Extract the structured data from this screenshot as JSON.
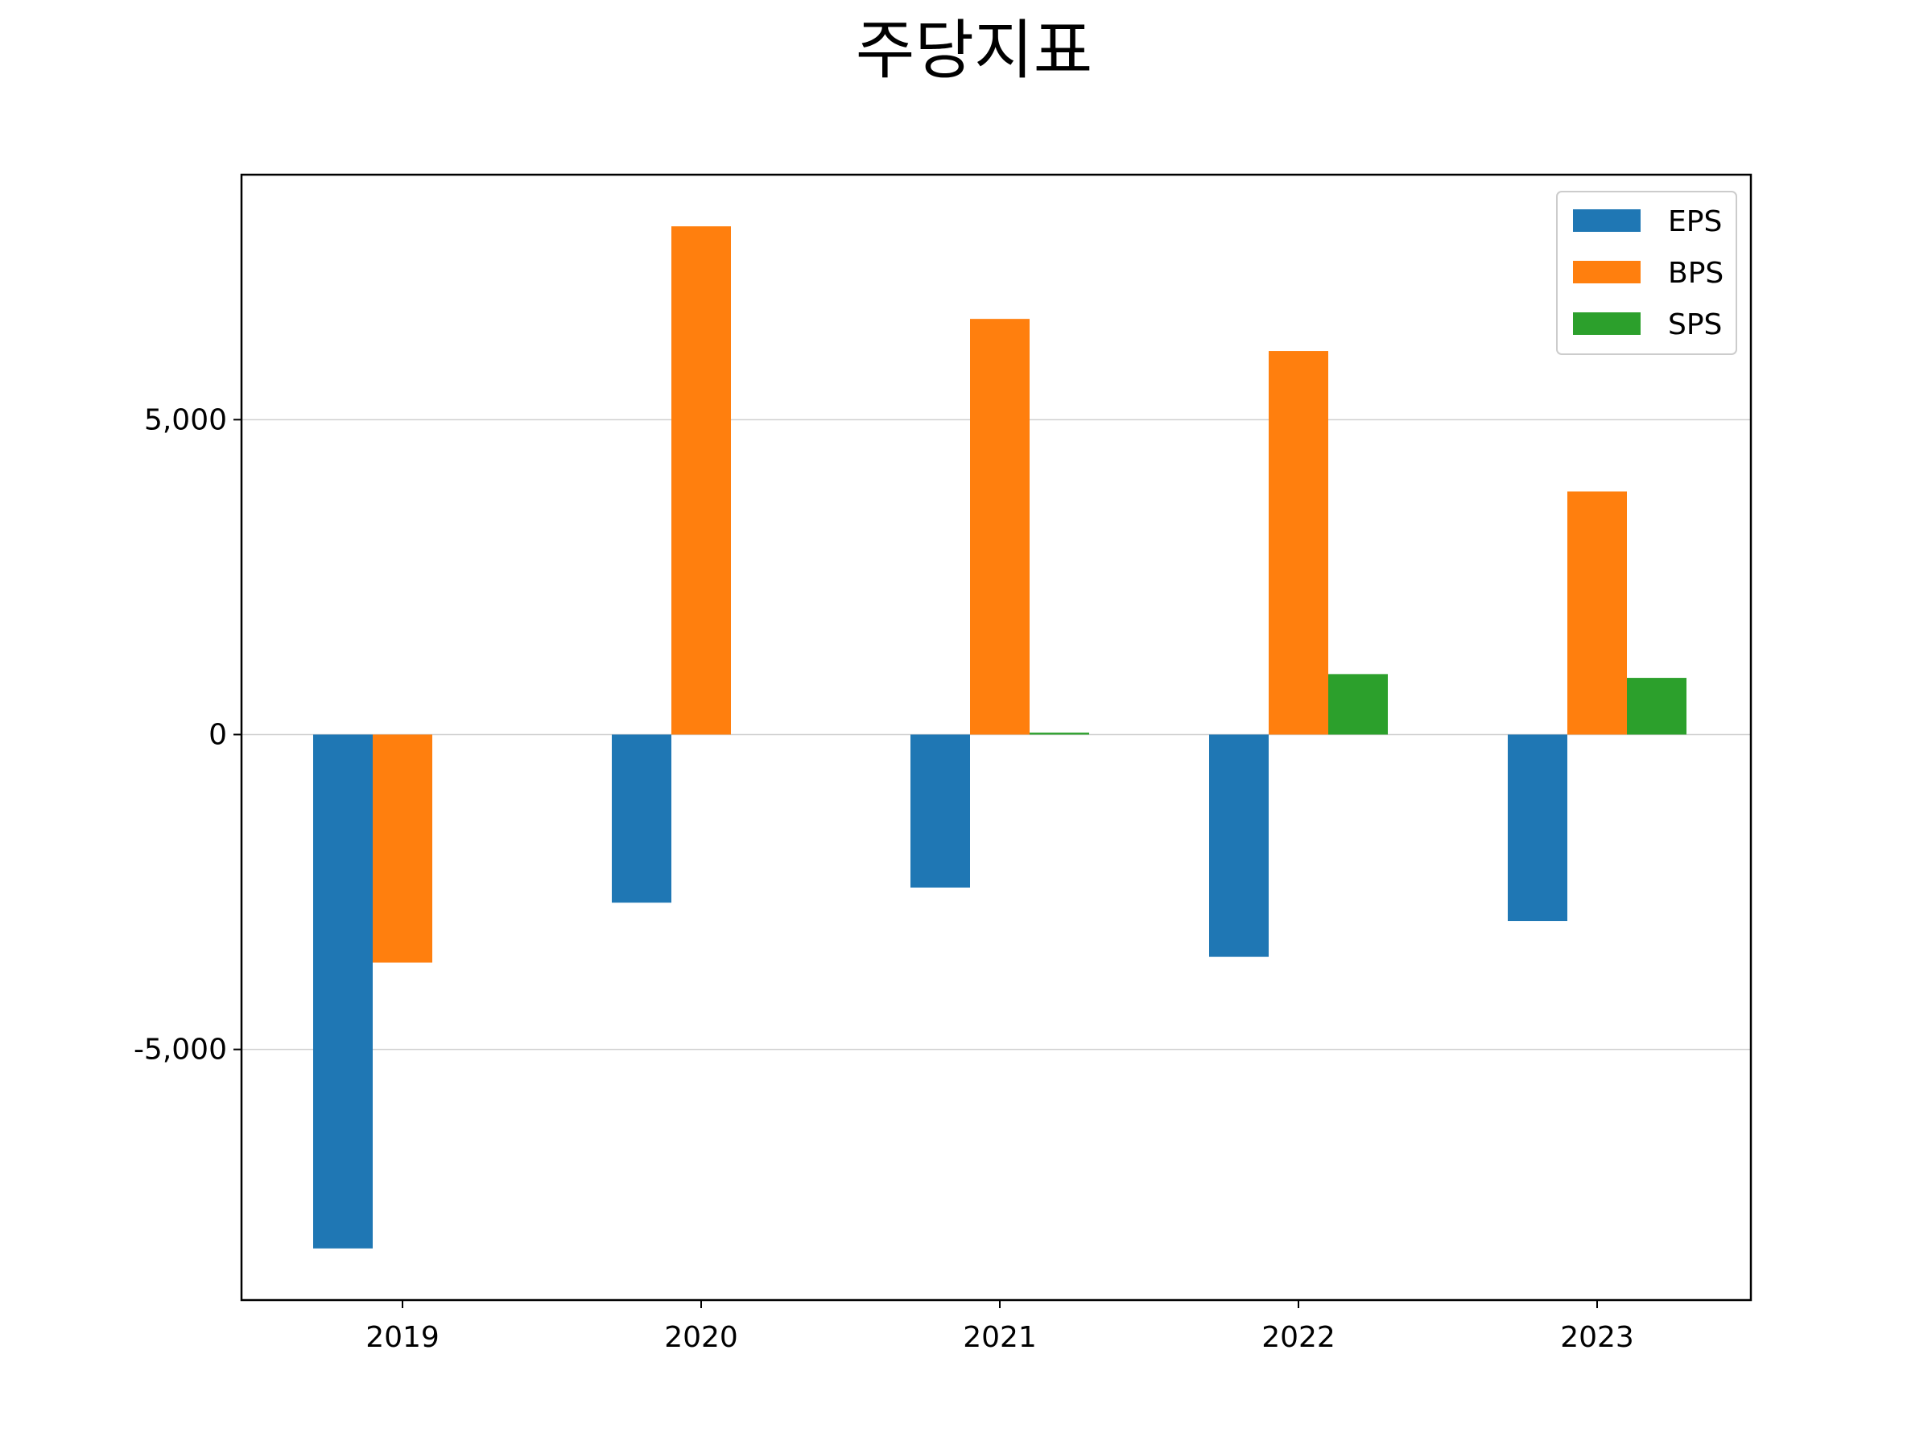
{
  "chart_data": {
    "type": "bar",
    "title": "주당지표",
    "xlabel": "",
    "ylabel": "",
    "categories": [
      "2019",
      "2020",
      "2021",
      "2022",
      "2023"
    ],
    "series": [
      {
        "name": "EPS",
        "color": "#1f77b4",
        "values": [
          -8160,
          -2670,
          -2430,
          -3530,
          -2960
        ]
      },
      {
        "name": "BPS",
        "color": "#ff7f0e",
        "values": [
          -3620,
          8070,
          6600,
          6090,
          3860
        ]
      },
      {
        "name": "SPS",
        "color": "#2ca02c",
        "values": [
          0,
          0,
          30,
          960,
          900
        ]
      }
    ],
    "ylim": [
      -8980,
      8890
    ],
    "yticks": [
      -5000,
      0,
      5000
    ],
    "ytick_labels": [
      "-5,000",
      "0",
      "5,000"
    ],
    "grid": {
      "y": true,
      "x": false,
      "color": "#d0d0d0"
    },
    "legend": {
      "position": "top-right"
    }
  }
}
